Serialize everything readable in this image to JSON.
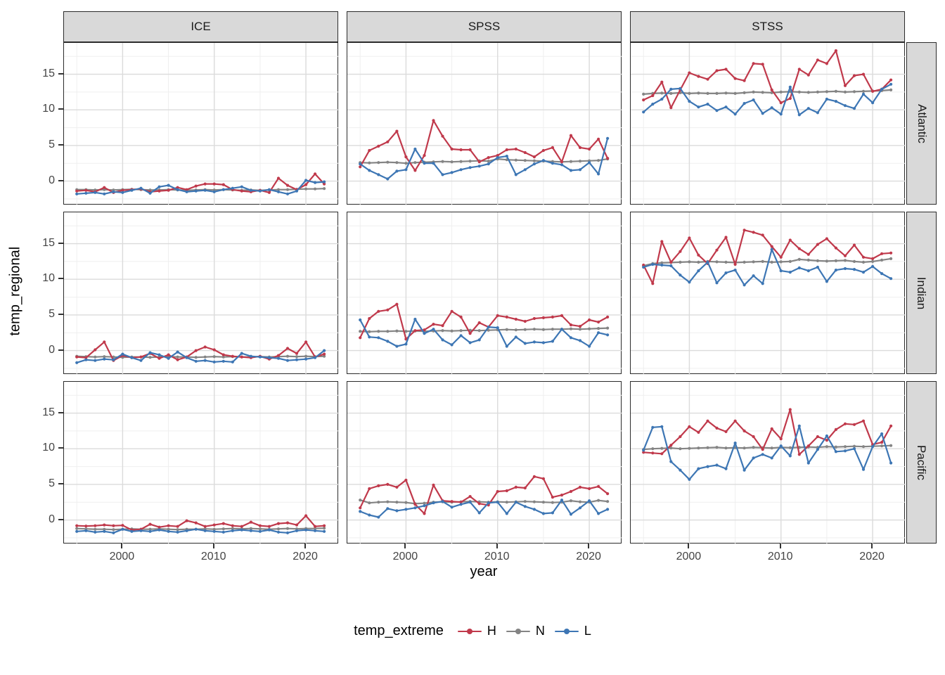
{
  "chart_data": {
    "type": "line",
    "title": "",
    "xlabel": "year",
    "ylabel": "temp_regional",
    "legend_position": "bottom",
    "grid": "on",
    "x": [
      1995,
      1996,
      1997,
      1998,
      1999,
      2000,
      2001,
      2002,
      2003,
      2004,
      2005,
      2006,
      2007,
      2008,
      2009,
      2010,
      2011,
      2012,
      2013,
      2014,
      2015,
      2016,
      2017,
      2018,
      2019,
      2020,
      2021,
      2022
    ],
    "facet_cols": [
      "ICE",
      "SPSS",
      "STSS"
    ],
    "facet_rows": [
      "Atlantic",
      "Indian",
      "Pacific"
    ],
    "x_ticks": [
      2000,
      2010,
      2020
    ],
    "x_minor": [
      1995,
      2005,
      2015
    ],
    "y_ticks": [
      15,
      10,
      5,
      0
    ],
    "y_minor": [
      17.5,
      12.5,
      7.5,
      2.5,
      -2.5
    ],
    "x_domain": [
      1993.6,
      2023.6
    ],
    "y_domain": [
      -3.4,
      19.4
    ],
    "series_order": [
      "N",
      "H",
      "L"
    ],
    "series_colors": {
      "H": "#c0394b",
      "N": "#848484",
      "L": "#3d76b4"
    },
    "panels": [
      {
        "row": "Atlantic",
        "col": "ICE",
        "series": {
          "H": [
            -1.4,
            -1.3,
            -1.5,
            -0.9,
            -1.6,
            -1.3,
            -1.2,
            -1.1,
            -1.5,
            -1.4,
            -1.3,
            -0.9,
            -1.2,
            -0.7,
            -0.4,
            -0.4,
            -0.5,
            -1.2,
            -1.4,
            -1.5,
            -1.3,
            -1.6,
            0.4,
            -0.6,
            -1.2,
            -0.5,
            1.0,
            -0.4
          ],
          "N": [
            -1.2,
            -1.2,
            -1.25,
            -1.2,
            -1.25,
            -1.2,
            -1.15,
            -1.2,
            -1.25,
            -1.25,
            -1.2,
            -1.25,
            -1.3,
            -1.25,
            -1.2,
            -1.25,
            -1.2,
            -1.25,
            -1.3,
            -1.25,
            -1.3,
            -1.25,
            -1.2,
            -1.2,
            -1.15,
            -1.1,
            -1.1,
            -1.05
          ],
          "L": [
            -1.8,
            -1.7,
            -1.6,
            -1.8,
            -1.5,
            -1.6,
            -1.3,
            -1.0,
            -1.7,
            -0.8,
            -0.6,
            -1.2,
            -1.5,
            -1.4,
            -1.3,
            -1.5,
            -1.2,
            -1.0,
            -0.8,
            -1.3,
            -1.4,
            -1.2,
            -1.5,
            -1.8,
            -1.4,
            0.1,
            -0.2,
            -0.1
          ]
        }
      },
      {
        "row": "Atlantic",
        "col": "SPSS",
        "series": {
          "H": [
            2.0,
            4.3,
            4.9,
            5.5,
            7.0,
            3.4,
            1.5,
            3.6,
            8.5,
            6.3,
            4.5,
            4.4,
            4.4,
            2.7,
            3.3,
            3.6,
            4.4,
            4.5,
            4.0,
            3.4,
            4.3,
            4.7,
            2.7,
            6.4,
            4.7,
            4.5,
            5.9,
            3.2
          ],
          "N": [
            2.6,
            2.55,
            2.6,
            2.65,
            2.6,
            2.5,
            2.6,
            2.65,
            2.7,
            2.75,
            2.7,
            2.75,
            2.8,
            2.85,
            2.8,
            3.1,
            3.0,
            2.95,
            2.9,
            2.85,
            2.8,
            2.75,
            2.7,
            2.75,
            2.8,
            2.85,
            2.9,
            3.1
          ],
          "L": [
            2.4,
            1.5,
            0.9,
            0.3,
            1.4,
            1.6,
            4.5,
            2.5,
            2.5,
            0.9,
            1.2,
            1.6,
            1.9,
            2.1,
            2.4,
            3.3,
            3.5,
            0.9,
            1.6,
            2.4,
            2.9,
            2.5,
            2.3,
            1.5,
            1.6,
            2.6,
            1.0,
            6.0
          ]
        }
      },
      {
        "row": "Atlantic",
        "col": "STSS",
        "series": {
          "H": [
            11.4,
            12.0,
            13.9,
            10.3,
            12.8,
            15.2,
            14.7,
            14.3,
            15.5,
            15.7,
            14.4,
            14.1,
            16.5,
            16.4,
            12.8,
            11.0,
            11.6,
            15.7,
            14.9,
            17.0,
            16.5,
            18.3,
            13.4,
            14.8,
            15.0,
            12.6,
            12.9,
            14.2
          ],
          "N": [
            12.2,
            12.3,
            12.35,
            12.3,
            12.4,
            12.3,
            12.35,
            12.3,
            12.3,
            12.35,
            12.3,
            12.4,
            12.5,
            12.45,
            12.4,
            12.5,
            12.55,
            12.5,
            12.45,
            12.5,
            12.55,
            12.6,
            12.5,
            12.55,
            12.6,
            12.65,
            12.7,
            12.8
          ],
          "L": [
            9.7,
            10.8,
            11.5,
            12.9,
            13.0,
            11.2,
            10.4,
            10.8,
            9.9,
            10.4,
            9.4,
            10.9,
            11.4,
            9.5,
            10.3,
            9.4,
            13.2,
            9.3,
            10.2,
            9.6,
            11.5,
            11.2,
            10.6,
            10.2,
            12.2,
            11.0,
            12.9,
            13.6
          ]
        }
      },
      {
        "row": "Indian",
        "col": "ICE",
        "series": {
          "H": [
            -0.9,
            -1.0,
            0.1,
            1.2,
            -1.4,
            -0.7,
            -1.0,
            -0.9,
            -0.4,
            -1.1,
            -0.6,
            -1.3,
            -0.9,
            0.0,
            0.5,
            0.1,
            -0.6,
            -0.8,
            -0.9,
            -1.0,
            -0.8,
            -1.2,
            -0.7,
            0.3,
            -0.4,
            1.2,
            -0.9,
            -0.5
          ],
          "N": [
            -0.8,
            -0.85,
            -0.9,
            -0.85,
            -0.9,
            -0.95,
            -0.9,
            -0.9,
            -0.95,
            -0.9,
            -0.85,
            -0.9,
            -0.9,
            -0.95,
            -0.9,
            -0.85,
            -0.9,
            -0.85,
            -0.9,
            -0.9,
            -0.85,
            -0.9,
            -0.85,
            -0.8,
            -0.85,
            -0.8,
            -0.85,
            -0.8
          ],
          "L": [
            -1.7,
            -1.3,
            -1.4,
            -1.2,
            -1.3,
            -0.5,
            -1.0,
            -1.4,
            -0.3,
            -0.6,
            -1.1,
            -0.2,
            -1.0,
            -1.5,
            -1.4,
            -1.6,
            -1.5,
            -1.6,
            -0.4,
            -0.8,
            -0.9,
            -1.0,
            -1.1,
            -1.4,
            -1.3,
            -1.2,
            -1.0,
            0.0
          ]
        }
      },
      {
        "row": "Indian",
        "col": "SPSS",
        "series": {
          "H": [
            1.8,
            4.5,
            5.5,
            5.7,
            6.5,
            1.6,
            2.8,
            2.9,
            3.7,
            3.5,
            5.5,
            4.7,
            2.4,
            3.9,
            3.3,
            4.9,
            4.7,
            4.4,
            4.1,
            4.5,
            4.6,
            4.7,
            4.9,
            3.6,
            3.4,
            4.3,
            4.0,
            4.7
          ],
          "N": [
            2.7,
            2.65,
            2.7,
            2.7,
            2.75,
            2.7,
            2.75,
            2.7,
            2.75,
            2.8,
            2.75,
            2.8,
            2.85,
            2.8,
            2.85,
            2.9,
            2.95,
            2.9,
            2.95,
            3.0,
            2.95,
            3.0,
            3.0,
            3.05,
            3.0,
            3.05,
            3.1,
            3.15
          ],
          "L": [
            4.3,
            1.9,
            1.8,
            1.3,
            0.6,
            0.9,
            4.4,
            2.4,
            3.0,
            1.5,
            0.8,
            2.1,
            1.1,
            1.5,
            3.3,
            3.2,
            0.6,
            1.9,
            1.0,
            1.2,
            1.1,
            1.3,
            3.0,
            1.8,
            1.4,
            0.6,
            2.5,
            2.2
          ]
        }
      },
      {
        "row": "Indian",
        "col": "STSS",
        "series": {
          "H": [
            12.0,
            9.4,
            15.3,
            12.4,
            13.9,
            15.8,
            13.4,
            12.2,
            14.1,
            15.9,
            12.1,
            16.9,
            16.6,
            16.2,
            14.6,
            13.1,
            15.5,
            14.3,
            13.5,
            14.9,
            15.7,
            14.4,
            13.3,
            14.8,
            13.1,
            12.9,
            13.6,
            13.7
          ],
          "N": [
            11.9,
            12.2,
            12.3,
            12.35,
            12.4,
            12.45,
            12.4,
            12.5,
            12.45,
            12.4,
            12.35,
            12.4,
            12.45,
            12.5,
            12.4,
            12.45,
            12.5,
            12.8,
            12.7,
            12.6,
            12.55,
            12.6,
            12.65,
            12.5,
            12.4,
            12.5,
            12.7,
            12.9
          ],
          "L": [
            11.7,
            12.1,
            12.0,
            11.9,
            10.6,
            9.6,
            11.2,
            12.4,
            9.5,
            10.9,
            11.3,
            9.2,
            10.5,
            9.4,
            14.2,
            11.2,
            11.0,
            11.6,
            11.2,
            11.7,
            9.7,
            11.3,
            11.5,
            11.4,
            11.0,
            11.8,
            10.8,
            10.1
          ]
        }
      },
      {
        "row": "Pacific",
        "col": "ICE",
        "series": {
          "H": [
            -0.8,
            -0.85,
            -0.8,
            -0.7,
            -0.8,
            -0.75,
            -1.4,
            -1.3,
            -0.6,
            -1.0,
            -0.8,
            -0.9,
            -0.1,
            -0.4,
            -0.9,
            -0.7,
            -0.5,
            -0.8,
            -0.9,
            -0.3,
            -0.8,
            -0.9,
            -0.5,
            -0.4,
            -0.7,
            0.6,
            -0.9,
            -0.8
          ],
          "N": [
            -1.2,
            -1.25,
            -1.3,
            -1.3,
            -1.35,
            -1.3,
            -1.25,
            -1.3,
            -1.3,
            -1.25,
            -1.3,
            -1.35,
            -1.3,
            -1.3,
            -1.25,
            -1.3,
            -1.25,
            -1.2,
            -1.25,
            -1.2,
            -1.25,
            -1.3,
            -1.25,
            -1.2,
            -1.25,
            -1.2,
            -1.2,
            -1.15
          ],
          "L": [
            -1.6,
            -1.5,
            -1.7,
            -1.6,
            -1.8,
            -1.3,
            -1.6,
            -1.5,
            -1.6,
            -1.4,
            -1.6,
            -1.7,
            -1.5,
            -1.3,
            -1.5,
            -1.6,
            -1.7,
            -1.5,
            -1.4,
            -1.5,
            -1.6,
            -1.4,
            -1.7,
            -1.8,
            -1.5,
            -1.4,
            -1.5,
            -1.6
          ]
        }
      },
      {
        "row": "Pacific",
        "col": "SPSS",
        "series": {
          "H": [
            1.7,
            4.4,
            4.8,
            5.0,
            4.6,
            5.6,
            2.2,
            0.9,
            4.9,
            2.7,
            2.6,
            2.5,
            3.3,
            2.3,
            2.1,
            4.0,
            4.1,
            4.6,
            4.5,
            6.1,
            5.8,
            3.2,
            3.5,
            4.0,
            4.6,
            4.4,
            4.7,
            3.7
          ],
          "N": [
            2.8,
            2.4,
            2.5,
            2.55,
            2.5,
            2.45,
            2.3,
            2.35,
            2.5,
            2.55,
            2.5,
            2.55,
            2.6,
            2.55,
            2.5,
            2.55,
            2.5,
            2.55,
            2.6,
            2.55,
            2.5,
            2.45,
            2.5,
            2.7,
            2.55,
            2.5,
            2.75,
            2.6
          ],
          "L": [
            1.2,
            0.7,
            0.4,
            1.6,
            1.3,
            1.5,
            1.7,
            2.0,
            2.4,
            2.6,
            1.8,
            2.2,
            2.5,
            1.0,
            2.4,
            2.5,
            0.9,
            2.5,
            1.9,
            1.5,
            0.9,
            1.0,
            2.8,
            0.8,
            1.7,
            2.7,
            0.9,
            1.5
          ]
        }
      },
      {
        "row": "Pacific",
        "col": "STSS",
        "series": {
          "H": [
            9.5,
            9.4,
            9.3,
            10.5,
            11.7,
            13.1,
            12.3,
            13.9,
            12.9,
            12.4,
            13.9,
            12.5,
            11.7,
            9.9,
            12.8,
            11.4,
            15.5,
            9.2,
            10.4,
            11.7,
            11.2,
            12.7,
            13.5,
            13.4,
            13.9,
            10.6,
            10.9,
            13.2
          ],
          "N": [
            9.9,
            10.0,
            10.05,
            10.1,
            10.0,
            10.05,
            10.1,
            10.15,
            10.2,
            10.1,
            10.15,
            10.1,
            10.2,
            10.15,
            10.1,
            10.2,
            10.15,
            10.2,
            10.25,
            10.2,
            10.3,
            10.25,
            10.3,
            10.35,
            10.3,
            10.35,
            10.4,
            10.45
          ],
          "L": [
            9.8,
            13.0,
            13.1,
            8.2,
            7.0,
            5.7,
            7.2,
            7.5,
            7.7,
            7.2,
            10.8,
            7.0,
            8.7,
            9.2,
            8.7,
            10.4,
            9.0,
            13.2,
            8.0,
            9.9,
            11.8,
            9.6,
            9.7,
            10.0,
            7.1,
            10.3,
            12.1,
            8.0
          ]
        }
      }
    ]
  },
  "legend": {
    "title": "temp_extreme",
    "items": [
      {
        "label": "H",
        "color": "#c0394b"
      },
      {
        "label": "N",
        "color": "#848484"
      },
      {
        "label": "L",
        "color": "#3d76b4"
      }
    ]
  }
}
